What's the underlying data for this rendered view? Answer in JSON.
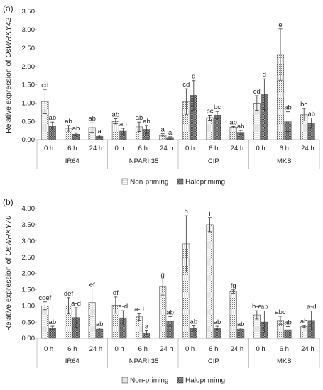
{
  "chart_data": [
    {
      "type": "bar",
      "panel_label": "(a)",
      "ylabel_prefix": "Relative expression of ",
      "ylabel_gene": "OsWRKY42",
      "ylim": [
        0,
        3.5
      ],
      "yticks": [
        "0.00",
        "0.50",
        "1.00",
        "1.50",
        "2.00",
        "2.50",
        "3.00",
        "3.50"
      ],
      "grid": false,
      "legend_position": "bottom",
      "groups": [
        "IR64",
        "INPARI 35",
        "CIP",
        "MKS"
      ],
      "times": [
        "0 h",
        "6 h",
        "24 h"
      ],
      "series": [
        {
          "name": "Non-priming",
          "pattern": "dots",
          "values": [
            [
              1.04,
              0.31,
              0.33
            ],
            [
              0.5,
              0.35,
              0.13
            ],
            [
              1.04,
              0.6,
              0.34
            ],
            [
              1.0,
              2.32,
              0.68
            ]
          ],
          "errors": [
            [
              0.33,
              0.08,
              0.13
            ],
            [
              0.07,
              0.13,
              0.03
            ],
            [
              0.35,
              0.07,
              0.02
            ],
            [
              0.2,
              0.7,
              0.17
            ]
          ],
          "labels": [
            [
              "cd",
              "ab",
              "ab"
            ],
            [
              "ab",
              "ab",
              "a"
            ],
            [
              "cd",
              "bc",
              "ab"
            ],
            [
              "cd",
              "e",
              "bc"
            ]
          ]
        },
        {
          "name": "Haloprimimg",
          "pattern": "checker",
          "values": [
            [
              0.37,
              0.15,
              0.09
            ],
            [
              0.23,
              0.28,
              0.06
            ],
            [
              1.21,
              0.67,
              0.2
            ],
            [
              1.24,
              0.49,
              0.45
            ]
          ],
          "errors": [
            [
              0.11,
              0.04,
              0.03
            ],
            [
              0.08,
              0.11,
              0.02
            ],
            [
              0.4,
              0.1,
              0.05
            ],
            [
              0.42,
              0.27,
              0.14
            ]
          ],
          "labels": [
            [
              "ab",
              "ab",
              "a"
            ],
            [
              "ab",
              "ab",
              "a"
            ],
            [
              "d",
              "bc",
              "ab"
            ],
            [
              "d",
              "ab",
              "ab"
            ]
          ]
        }
      ]
    },
    {
      "type": "bar",
      "panel_label": "(b)",
      "ylabel_prefix": "Relative expression of ",
      "ylabel_gene": "OsWRKY70",
      "ylim": [
        0,
        4.0
      ],
      "yticks": [
        "0.00",
        "0.50",
        "1.00",
        "1.50",
        "2.00",
        "2.50",
        "3.00",
        "3.50",
        "4.00"
      ],
      "grid": false,
      "legend_position": "bottom",
      "groups": [
        "IR64",
        "INPARI 35",
        "CIP",
        "MKS"
      ],
      "times": [
        "0 h",
        "6 h",
        "24 h"
      ],
      "series": [
        {
          "name": "Non-priming",
          "pattern": "dots",
          "values": [
            [
              1.0,
              1.0,
              1.1
            ],
            [
              1.02,
              0.66,
              1.58
            ],
            [
              2.91,
              3.5,
              1.44
            ],
            [
              0.72,
              0.55,
              0.36
            ]
          ],
          "errors": [
            [
              0.12,
              0.25,
              0.42
            ],
            [
              0.25,
              0.1,
              0.25
            ],
            [
              0.87,
              0.22,
              0.05
            ],
            [
              0.13,
              0.13,
              0.03
            ]
          ],
          "labels": [
            [
              "cdef",
              "def",
              "ef"
            ],
            [
              "df",
              "a-d",
              "g"
            ],
            [
              "h",
              "i",
              "fg"
            ],
            [
              "b-e",
              "abc",
              "ab"
            ]
          ]
        },
        {
          "name": "Haloprimimg",
          "pattern": "checker",
          "values": [
            [
              0.32,
              0.64,
              0.28
            ],
            [
              0.63,
              0.17,
              0.52
            ],
            [
              0.3,
              0.32,
              0.28
            ],
            [
              0.5,
              0.26,
              0.55
            ]
          ],
          "errors": [
            [
              0.05,
              0.3,
              0.03
            ],
            [
              0.22,
              0.06,
              0.15
            ],
            [
              0.08,
              0.05,
              0.03
            ],
            [
              0.34,
              0.1,
              0.29
            ]
          ],
          "labels": [
            [
              "ab",
              "a-d",
              "ab"
            ],
            [
              "a-d",
              "a",
              "ab"
            ],
            [
              "ab",
              "ab",
              "ab"
            ],
            [
              "ab",
              "ab",
              "a-d"
            ]
          ]
        }
      ]
    }
  ]
}
